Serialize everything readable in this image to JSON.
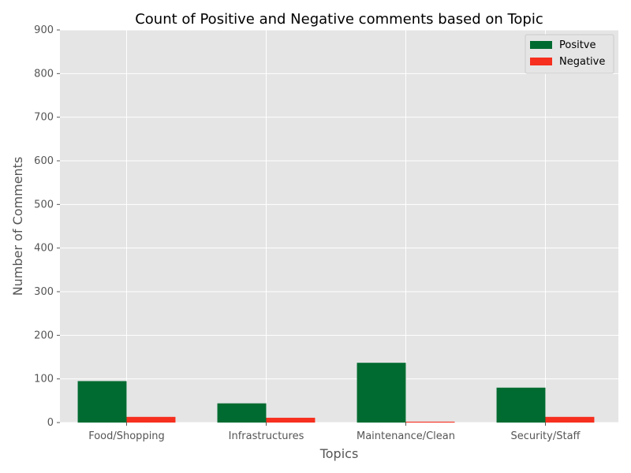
{
  "chart_data": {
    "type": "bar",
    "title": "Count of Positive and Negative comments based on Topic",
    "xlabel": "Topics",
    "ylabel": "Number of Comments",
    "categories": [
      "Food/Shopping",
      "Infrastructures",
      "Maintenance/Clean",
      "Security/Staff"
    ],
    "series": [
      {
        "name": "Positve",
        "color": "#006b30",
        "values": [
          95,
          44,
          137,
          80
        ]
      },
      {
        "name": "Negative",
        "color": "#f62f1f",
        "values": [
          13,
          11,
          2,
          13
        ]
      }
    ],
    "ylim": [
      0,
      900
    ],
    "yticks": [
      0,
      100,
      200,
      300,
      400,
      500,
      600,
      700,
      800,
      900
    ],
    "grid": true,
    "legend_position": "top-right",
    "background": "#e5e5e5"
  }
}
